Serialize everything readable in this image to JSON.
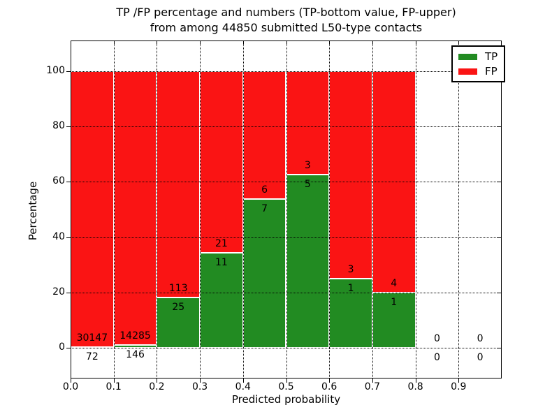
{
  "title": {
    "line1": "TP /FP percentage and numbers (TP-bottom value, FP-upper)",
    "line2": "from among 44850 submitted L50-type contacts"
  },
  "legend": {
    "items": [
      {
        "label": "TP",
        "color": "#228b22"
      },
      {
        "label": "FP",
        "color": "#fa1414"
      }
    ]
  },
  "chart_data": {
    "type": "bar",
    "stacked": true,
    "title": "TP /FP percentage and numbers (TP-bottom value, FP-upper) from among 44850 submitted L50-type contacts",
    "xlabel": "Predicted probability",
    "ylabel": "Percentage",
    "xlim": [
      0.0,
      1.0
    ],
    "ylim": [
      -11,
      111
    ],
    "x_ticks": [
      "0.0",
      "0.1",
      "0.2",
      "0.3",
      "0.4",
      "0.5",
      "0.6",
      "0.7",
      "0.8",
      "0.9"
    ],
    "y_ticks": [
      "0",
      "20",
      "40",
      "60",
      "80",
      "100"
    ],
    "grid": true,
    "grid_style": "dotted",
    "legend_position": "upper right",
    "total_submitted": 44850,
    "colors": {
      "tp": "#228b22",
      "fp": "#fa1414",
      "bar_edge": "#ffffff"
    },
    "bins": [
      {
        "range": [
          0.0,
          0.1
        ],
        "tp": 72,
        "fp": 30147,
        "tp_pct": 0.24
      },
      {
        "range": [
          0.1,
          0.2
        ],
        "tp": 146,
        "fp": 14285,
        "tp_pct": 1.01
      },
      {
        "range": [
          0.2,
          0.3
        ],
        "tp": 25,
        "fp": 113,
        "tp_pct": 18.12
      },
      {
        "range": [
          0.3,
          0.4
        ],
        "tp": 11,
        "fp": 21,
        "tp_pct": 34.38
      },
      {
        "range": [
          0.4,
          0.5
        ],
        "tp": 7,
        "fp": 6,
        "tp_pct": 53.85
      },
      {
        "range": [
          0.5,
          0.6
        ],
        "tp": 5,
        "fp": 3,
        "tp_pct": 62.5
      },
      {
        "range": [
          0.6,
          0.7
        ],
        "tp": 1,
        "fp": 3,
        "tp_pct": 25.0
      },
      {
        "range": [
          0.7,
          0.8
        ],
        "tp": 1,
        "fp": 4,
        "tp_pct": 20.0
      },
      {
        "range": [
          0.8,
          0.9
        ],
        "tp": 0,
        "fp": 0,
        "tp_pct": 0
      },
      {
        "range": [
          0.9,
          1.0
        ],
        "tp": 0,
        "fp": 0,
        "tp_pct": 0
      }
    ],
    "series": [
      {
        "name": "TP",
        "color": "#228b22",
        "counts": [
          72,
          146,
          25,
          11,
          7,
          5,
          1,
          1,
          0,
          0
        ]
      },
      {
        "name": "FP",
        "color": "#fa1414",
        "counts": [
          30147,
          14285,
          113,
          21,
          6,
          3,
          3,
          4,
          0,
          0
        ]
      }
    ]
  }
}
